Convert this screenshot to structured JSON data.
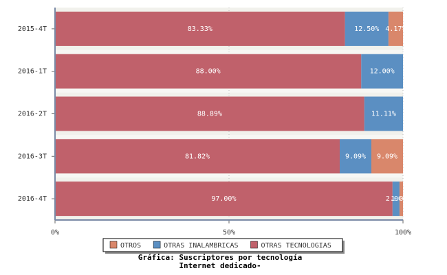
{
  "chart_data": {
    "type": "stacked-bar-horizontal",
    "title": [
      "Gráfica: Suscriptores por tecnología",
      "Internet dedicado-"
    ],
    "categories": [
      "2015-4T",
      "2016-1T",
      "2016-2T",
      "2016-3T",
      "2016-4T"
    ],
    "series": [
      {
        "name": "OTRAS TECNOLOGIAS",
        "color": "#c0616b",
        "values": [
          83.33,
          88.0,
          88.89,
          81.82,
          97.0
        ],
        "value_labels": [
          "83.33%",
          "88.00%",
          "88.89%",
          "81.82%",
          "97.00%"
        ]
      },
      {
        "name": "OTRAS INALAMBRICAS",
        "color": "#5b8fc2",
        "values": [
          12.5,
          12.0,
          11.11,
          9.09,
          2.0
        ],
        "value_labels": [
          "12.50%",
          "12.00%",
          "11.11%",
          "9.09%",
          "2.00%"
        ]
      },
      {
        "name": "OTROS",
        "color": "#d9876b",
        "values": [
          4.17,
          0,
          0,
          9.09,
          1.0
        ],
        "value_labels": [
          "4.17%",
          null,
          null,
          "9.09%",
          "1.00%"
        ]
      }
    ],
    "legend_order": [
      2,
      1,
      0
    ],
    "xlim": [
      0,
      100
    ],
    "xticks": [
      {
        "value": 0,
        "label": "0%"
      },
      {
        "value": 50,
        "label": "50%"
      },
      {
        "value": 100,
        "label": "100%"
      }
    ],
    "grid": true
  }
}
